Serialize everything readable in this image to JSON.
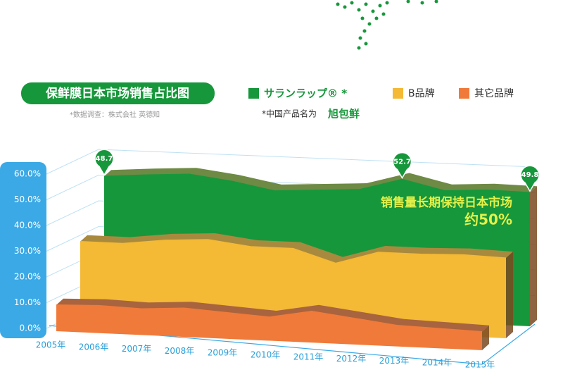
{
  "chart_data": {
    "type": "area3d",
    "title": "保鲜膜日本市场销售占比图",
    "source": "*数据调查：株式会社  英德知",
    "note": "*中国产品名为",
    "note_brand": "旭包鲜",
    "annotation": "销售量长期保持日本市场",
    "annotation_value": "约50%",
    "categories": [
      "2005年",
      "2006年",
      "2007年",
      "2008年",
      "2009年",
      "2010年",
      "2011年",
      "2012年",
      "2013年",
      "2014年",
      "2015年"
    ],
    "series": [
      {
        "name": "サランラップ® *",
        "color": "#17973b",
        "values": [
          48.7,
          50,
          51,
          49,
          46,
          47,
          48,
          52.7,
          49,
          50,
          49.8
        ]
      },
      {
        "name": "B品牌",
        "color": "#f4b935",
        "values": [
          28,
          28,
          30,
          31,
          29,
          29,
          24,
          29,
          29,
          29.5,
          29
        ]
      },
      {
        "name": "其它品牌",
        "color": "#f07a3a",
        "values": [
          8,
          8.5,
          8,
          9,
          8,
          7,
          10,
          8,
          6,
          5.5,
          5
        ]
      }
    ],
    "labeled_points": [
      0,
      7,
      10
    ],
    "ylim": [
      0,
      60
    ],
    "yticks": [
      {
        "value": 0,
        "label": "0.0%"
      },
      {
        "value": 10,
        "label": "10.0%"
      },
      {
        "value": 20,
        "label": "20.0%"
      },
      {
        "value": 30,
        "label": "30.0%"
      },
      {
        "value": 40,
        "label": "40.0%"
      },
      {
        "value": 50,
        "label": "50.0%"
      },
      {
        "value": 60,
        "label": "60.0%"
      }
    ],
    "grid": true
  }
}
